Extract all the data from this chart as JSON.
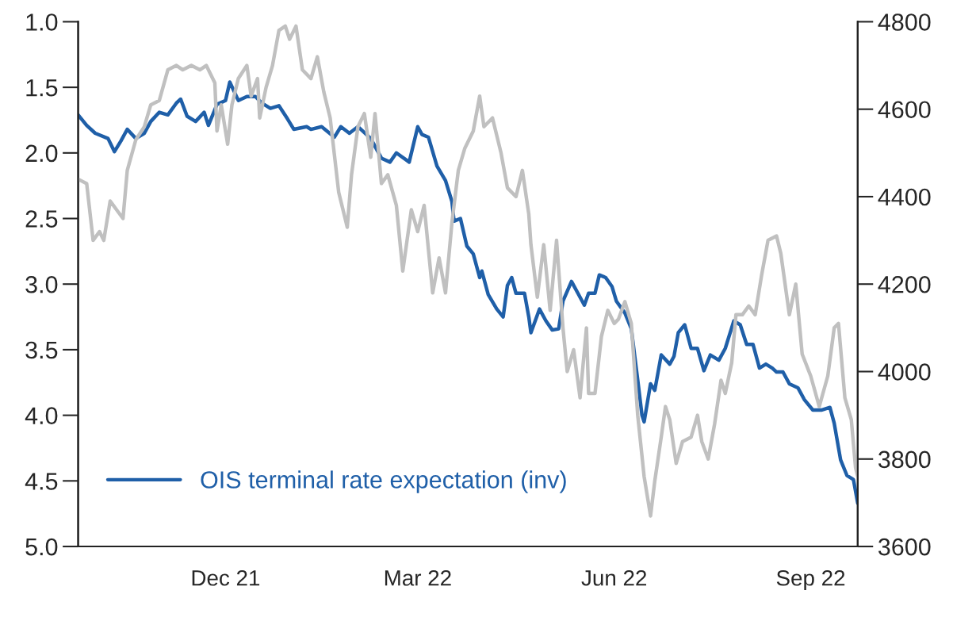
{
  "chart_data": {
    "type": "line",
    "xlim": [
      "2021-09-23",
      "2022-09-23"
    ],
    "xticks": [
      {
        "value": "2021-12-01",
        "label": "Dec 21"
      },
      {
        "value": "2022-03-01",
        "label": "Mar 22"
      },
      {
        "value": "2022-06-01",
        "label": "Jun 22"
      },
      {
        "value": "2022-09-01",
        "label": "Sep 22"
      }
    ],
    "ylim": [
      5.0,
      1.0
    ],
    "yticks": [
      {
        "value": 1.0,
        "label": "1.0"
      },
      1.5,
      {
        "value": 2.0,
        "label": "2.0"
      },
      2.5,
      {
        "value": 3.0,
        "label": "3.0"
      },
      3.5,
      {
        "value": 4.0,
        "label": "4.0"
      },
      4.5,
      {
        "value": 5.0,
        "label": "5.0"
      }
    ],
    "y2lim": [
      3600,
      4800
    ],
    "y2ticks": [
      3600,
      3800,
      4000,
      4200,
      4400,
      4600,
      4800
    ],
    "grid": false,
    "legend": "bottom left",
    "series": [
      {
        "name": "OIS terminal rate expectation (inv)",
        "color": "#1f5fa8",
        "axis": "y",
        "x": [
          "2021-09-23",
          "2021-09-27",
          "2021-10-01",
          "2021-10-07",
          "2021-10-10",
          "2021-10-13",
          "2021-10-16",
          "2021-10-20",
          "2021-10-24",
          "2021-10-27",
          "2021-10-31",
          "2021-11-04",
          "2021-11-08",
          "2021-11-10",
          "2021-11-13",
          "2021-11-17",
          "2021-11-21",
          "2021-11-23",
          "2021-11-27",
          "2021-12-01",
          "2021-12-03",
          "2021-12-07",
          "2021-12-11",
          "2021-12-15",
          "2021-12-18",
          "2021-12-22",
          "2021-12-26",
          "2021-12-30",
          "2022-01-02",
          "2022-01-08",
          "2022-01-10",
          "2022-01-15",
          "2022-01-21",
          "2022-01-24",
          "2022-01-28",
          "2022-02-01",
          "2022-02-07",
          "2022-02-12",
          "2022-02-16",
          "2022-02-19",
          "2022-02-25",
          "2022-03-01",
          "2022-03-03",
          "2022-03-06",
          "2022-03-10",
          "2022-03-14",
          "2022-03-17",
          "2022-03-18",
          "2022-03-21",
          "2022-03-24",
          "2022-03-27",
          "2022-03-30",
          "2022-03-31",
          "2022-04-03",
          "2022-04-07",
          "2022-04-10",
          "2022-04-12",
          "2022-04-14",
          "2022-04-16",
          "2022-04-20",
          "2022-04-22",
          "2022-04-23",
          "2022-04-27",
          "2022-04-30",
          "2022-05-03",
          "2022-05-06",
          "2022-05-08",
          "2022-05-12",
          "2022-05-15",
          "2022-05-18",
          "2022-05-20",
          "2022-05-23",
          "2022-05-25",
          "2022-05-28",
          "2022-05-31",
          "2022-06-02",
          "2022-06-06",
          "2022-06-09",
          "2022-06-12",
          "2022-06-14",
          "2022-06-15",
          "2022-06-18",
          "2022-06-20",
          "2022-06-23",
          "2022-06-27",
          "2022-06-29",
          "2022-07-01",
          "2022-07-04",
          "2022-07-07",
          "2022-07-10",
          "2022-07-13",
          "2022-07-16",
          "2022-07-20",
          "2022-07-23",
          "2022-07-27",
          "2022-07-30",
          "2022-08-02",
          "2022-08-05",
          "2022-08-08",
          "2022-08-11",
          "2022-08-14",
          "2022-08-16",
          "2022-08-19",
          "2022-08-22",
          "2022-08-26",
          "2022-08-29",
          "2022-09-02",
          "2022-09-06",
          "2022-09-10",
          "2022-09-12",
          "2022-09-15",
          "2022-09-18",
          "2022-09-21",
          "2022-09-23"
        ],
        "values": [
          1.71,
          1.79,
          1.85,
          1.89,
          1.99,
          1.91,
          1.82,
          1.89,
          1.85,
          1.76,
          1.69,
          1.71,
          1.62,
          1.59,
          1.72,
          1.76,
          1.69,
          1.79,
          1.63,
          1.6,
          1.46,
          1.6,
          1.57,
          1.57,
          1.62,
          1.66,
          1.64,
          1.74,
          1.82,
          1.8,
          1.82,
          1.8,
          1.88,
          1.8,
          1.85,
          1.8,
          1.89,
          2.04,
          2.07,
          2.0,
          2.07,
          1.8,
          1.86,
          1.88,
          2.1,
          2.21,
          2.37,
          2.52,
          2.5,
          2.71,
          2.77,
          2.95,
          2.9,
          3.08,
          3.19,
          3.25,
          3.01,
          2.95,
          3.07,
          3.07,
          3.25,
          3.37,
          3.19,
          3.28,
          3.35,
          3.34,
          3.13,
          2.98,
          3.07,
          3.16,
          3.07,
          3.07,
          2.93,
          2.95,
          3.02,
          3.13,
          3.22,
          3.34,
          3.73,
          4.0,
          4.05,
          3.76,
          3.81,
          3.54,
          3.61,
          3.55,
          3.37,
          3.31,
          3.49,
          3.49,
          3.66,
          3.54,
          3.58,
          3.49,
          3.28,
          3.31,
          3.46,
          3.46,
          3.64,
          3.61,
          3.64,
          3.67,
          3.67,
          3.76,
          3.79,
          3.88,
          3.96,
          3.96,
          3.94,
          4.06,
          4.34,
          4.46,
          4.49,
          4.67
        ]
      },
      {
        "color": "#c0c0c0",
        "axis": "y2",
        "x": [
          "2021-09-23",
          "2021-09-27",
          "2021-09-30",
          "2021-10-03",
          "2021-10-05",
          "2021-10-08",
          "2021-10-11",
          "2021-10-14",
          "2021-10-16",
          "2021-10-20",
          "2021-10-24",
          "2021-10-27",
          "2021-10-31",
          "2021-11-04",
          "2021-11-08",
          "2021-11-11",
          "2021-11-15",
          "2021-11-19",
          "2021-11-22",
          "2021-11-26",
          "2021-11-27",
          "2021-11-29",
          "2021-12-02",
          "2021-12-04",
          "2021-12-07",
          "2021-12-11",
          "2021-12-13",
          "2021-12-16",
          "2021-12-17",
          "2021-12-20",
          "2021-12-23",
          "2021-12-26",
          "2021-12-29",
          "2021-12-31",
          "2022-01-03",
          "2022-01-06",
          "2022-01-10",
          "2022-01-13",
          "2022-01-16",
          "2022-01-19",
          "2022-01-23",
          "2022-01-27",
          "2022-01-29",
          "2022-02-01",
          "2022-02-04",
          "2022-02-07",
          "2022-02-09",
          "2022-02-12",
          "2022-02-15",
          "2022-02-19",
          "2022-02-22",
          "2022-02-26",
          "2022-03-01",
          "2022-03-04",
          "2022-03-08",
          "2022-03-11",
          "2022-03-14",
          "2022-03-17",
          "2022-03-20",
          "2022-03-23",
          "2022-03-27",
          "2022-03-30",
          "2022-04-01",
          "2022-04-05",
          "2022-04-09",
          "2022-04-12",
          "2022-04-16",
          "2022-04-19",
          "2022-04-22",
          "2022-04-23",
          "2022-04-26",
          "2022-04-29",
          "2022-05-02",
          "2022-05-05",
          "2022-05-08",
          "2022-05-10",
          "2022-05-13",
          "2022-05-16",
          "2022-05-19",
          "2022-05-20",
          "2022-05-23",
          "2022-05-26",
          "2022-05-29",
          "2022-06-01",
          "2022-06-03",
          "2022-06-06",
          "2022-06-09",
          "2022-06-12",
          "2022-06-15",
          "2022-06-18",
          "2022-06-20",
          "2022-06-23",
          "2022-06-25",
          "2022-06-27",
          "2022-06-30",
          "2022-07-03",
          "2022-07-07",
          "2022-07-10",
          "2022-07-12",
          "2022-07-15",
          "2022-07-18",
          "2022-07-21",
          "2022-07-23",
          "2022-07-26",
          "2022-07-28",
          "2022-07-31",
          "2022-08-03",
          "2022-08-06",
          "2022-08-09",
          "2022-08-12",
          "2022-08-16",
          "2022-08-18",
          "2022-08-22",
          "2022-08-25",
          "2022-08-28",
          "2022-09-01",
          "2022-09-05",
          "2022-09-09",
          "2022-09-12",
          "2022-09-14",
          "2022-09-17",
          "2022-09-20",
          "2022-09-22",
          "2022-09-23"
        ],
        "values": [
          4440,
          4430,
          4300,
          4320,
          4300,
          4390,
          4370,
          4350,
          4460,
          4530,
          4560,
          4610,
          4620,
          4690,
          4700,
          4690,
          4700,
          4690,
          4700,
          4660,
          4550,
          4610,
          4520,
          4610,
          4670,
          4700,
          4630,
          4670,
          4580,
          4650,
          4700,
          4780,
          4790,
          4760,
          4790,
          4690,
          4670,
          4720,
          4640,
          4580,
          4410,
          4330,
          4450,
          4560,
          4590,
          4490,
          4590,
          4430,
          4450,
          4380,
          4230,
          4370,
          4320,
          4380,
          4180,
          4260,
          4180,
          4340,
          4460,
          4510,
          4550,
          4630,
          4560,
          4580,
          4500,
          4420,
          4400,
          4460,
          4360,
          4290,
          4170,
          4290,
          4140,
          4300,
          4100,
          4000,
          4050,
          3940,
          4100,
          3950,
          3950,
          4080,
          4140,
          4110,
          4120,
          4160,
          4110,
          3900,
          3760,
          3670,
          3750,
          3850,
          3920,
          3890,
          3790,
          3840,
          3850,
          3900,
          3840,
          3800,
          3880,
          3980,
          3950,
          4020,
          4130,
          4130,
          4150,
          4130,
          4220,
          4300,
          4310,
          4270,
          4130,
          4200,
          4040,
          3990,
          3920,
          3990,
          4100,
          4110,
          3940,
          3890,
          3780,
          3760
        ]
      }
    ]
  }
}
